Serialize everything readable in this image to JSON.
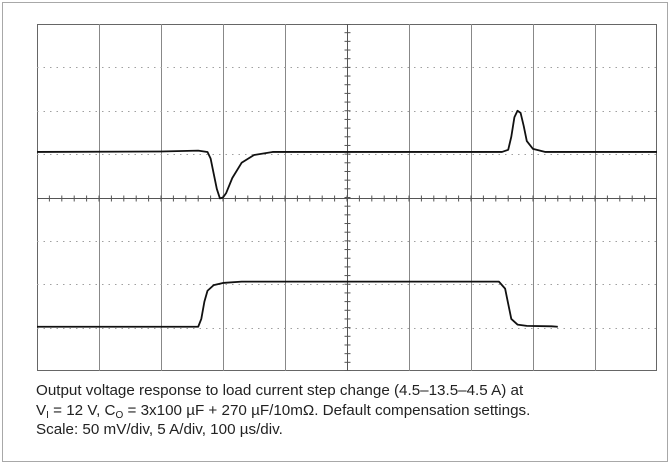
{
  "chart_data": {
    "type": "line",
    "title": "",
    "xlabel": "",
    "ylabel": "",
    "grid": true,
    "divisions": {
      "x": 10,
      "y": 8
    },
    "x_range_div": [
      0,
      10
    ],
    "y_range_div": [
      0,
      8
    ],
    "series": [
      {
        "points": [
          [
            0,
            5.05
          ],
          [
            2.0,
            5.06
          ],
          [
            2.6,
            5.08
          ],
          [
            2.75,
            5.05
          ],
          [
            2.8,
            4.9
          ],
          [
            2.85,
            4.55
          ],
          [
            2.9,
            4.2
          ],
          [
            2.95,
            3.98
          ],
          [
            3.0,
            4.0
          ],
          [
            3.05,
            4.1
          ],
          [
            3.15,
            4.45
          ],
          [
            3.3,
            4.8
          ],
          [
            3.5,
            4.98
          ],
          [
            3.8,
            5.05
          ],
          [
            7.5,
            5.05
          ],
          [
            7.6,
            5.1
          ],
          [
            7.65,
            5.4
          ],
          [
            7.7,
            5.85
          ],
          [
            7.75,
            6.0
          ],
          [
            7.8,
            5.95
          ],
          [
            7.85,
            5.65
          ],
          [
            7.9,
            5.3
          ],
          [
            8.0,
            5.12
          ],
          [
            8.2,
            5.05
          ],
          [
            10,
            5.05
          ]
        ]
      },
      {
        "points": [
          [
            0,
            1.02
          ],
          [
            2.6,
            1.02
          ],
          [
            2.65,
            1.2
          ],
          [
            2.7,
            1.6
          ],
          [
            2.75,
            1.85
          ],
          [
            2.85,
            1.98
          ],
          [
            3.0,
            2.03
          ],
          [
            3.3,
            2.06
          ],
          [
            7.45,
            2.06
          ],
          [
            7.55,
            1.9
          ],
          [
            7.6,
            1.55
          ],
          [
            7.65,
            1.2
          ],
          [
            7.75,
            1.07
          ],
          [
            7.9,
            1.04
          ],
          [
            8.3,
            1.03
          ],
          [
            8.4,
            1.02
          ]
        ]
      }
    ]
  },
  "caption": {
    "line1": "Output voltage response to load current step change (4.5–13.5–4.5 A) at",
    "line2_pre": "V",
    "line2_sub1": "I",
    "line2_mid": " = 12 V, C",
    "line2_sub2": "O",
    "line2_post": " = 3x100 µF + 270 µF/10mΩ. Default compensation settings.",
    "line3": "Scale: 50 mV/div, 5 A/div, 100 µs/div."
  }
}
